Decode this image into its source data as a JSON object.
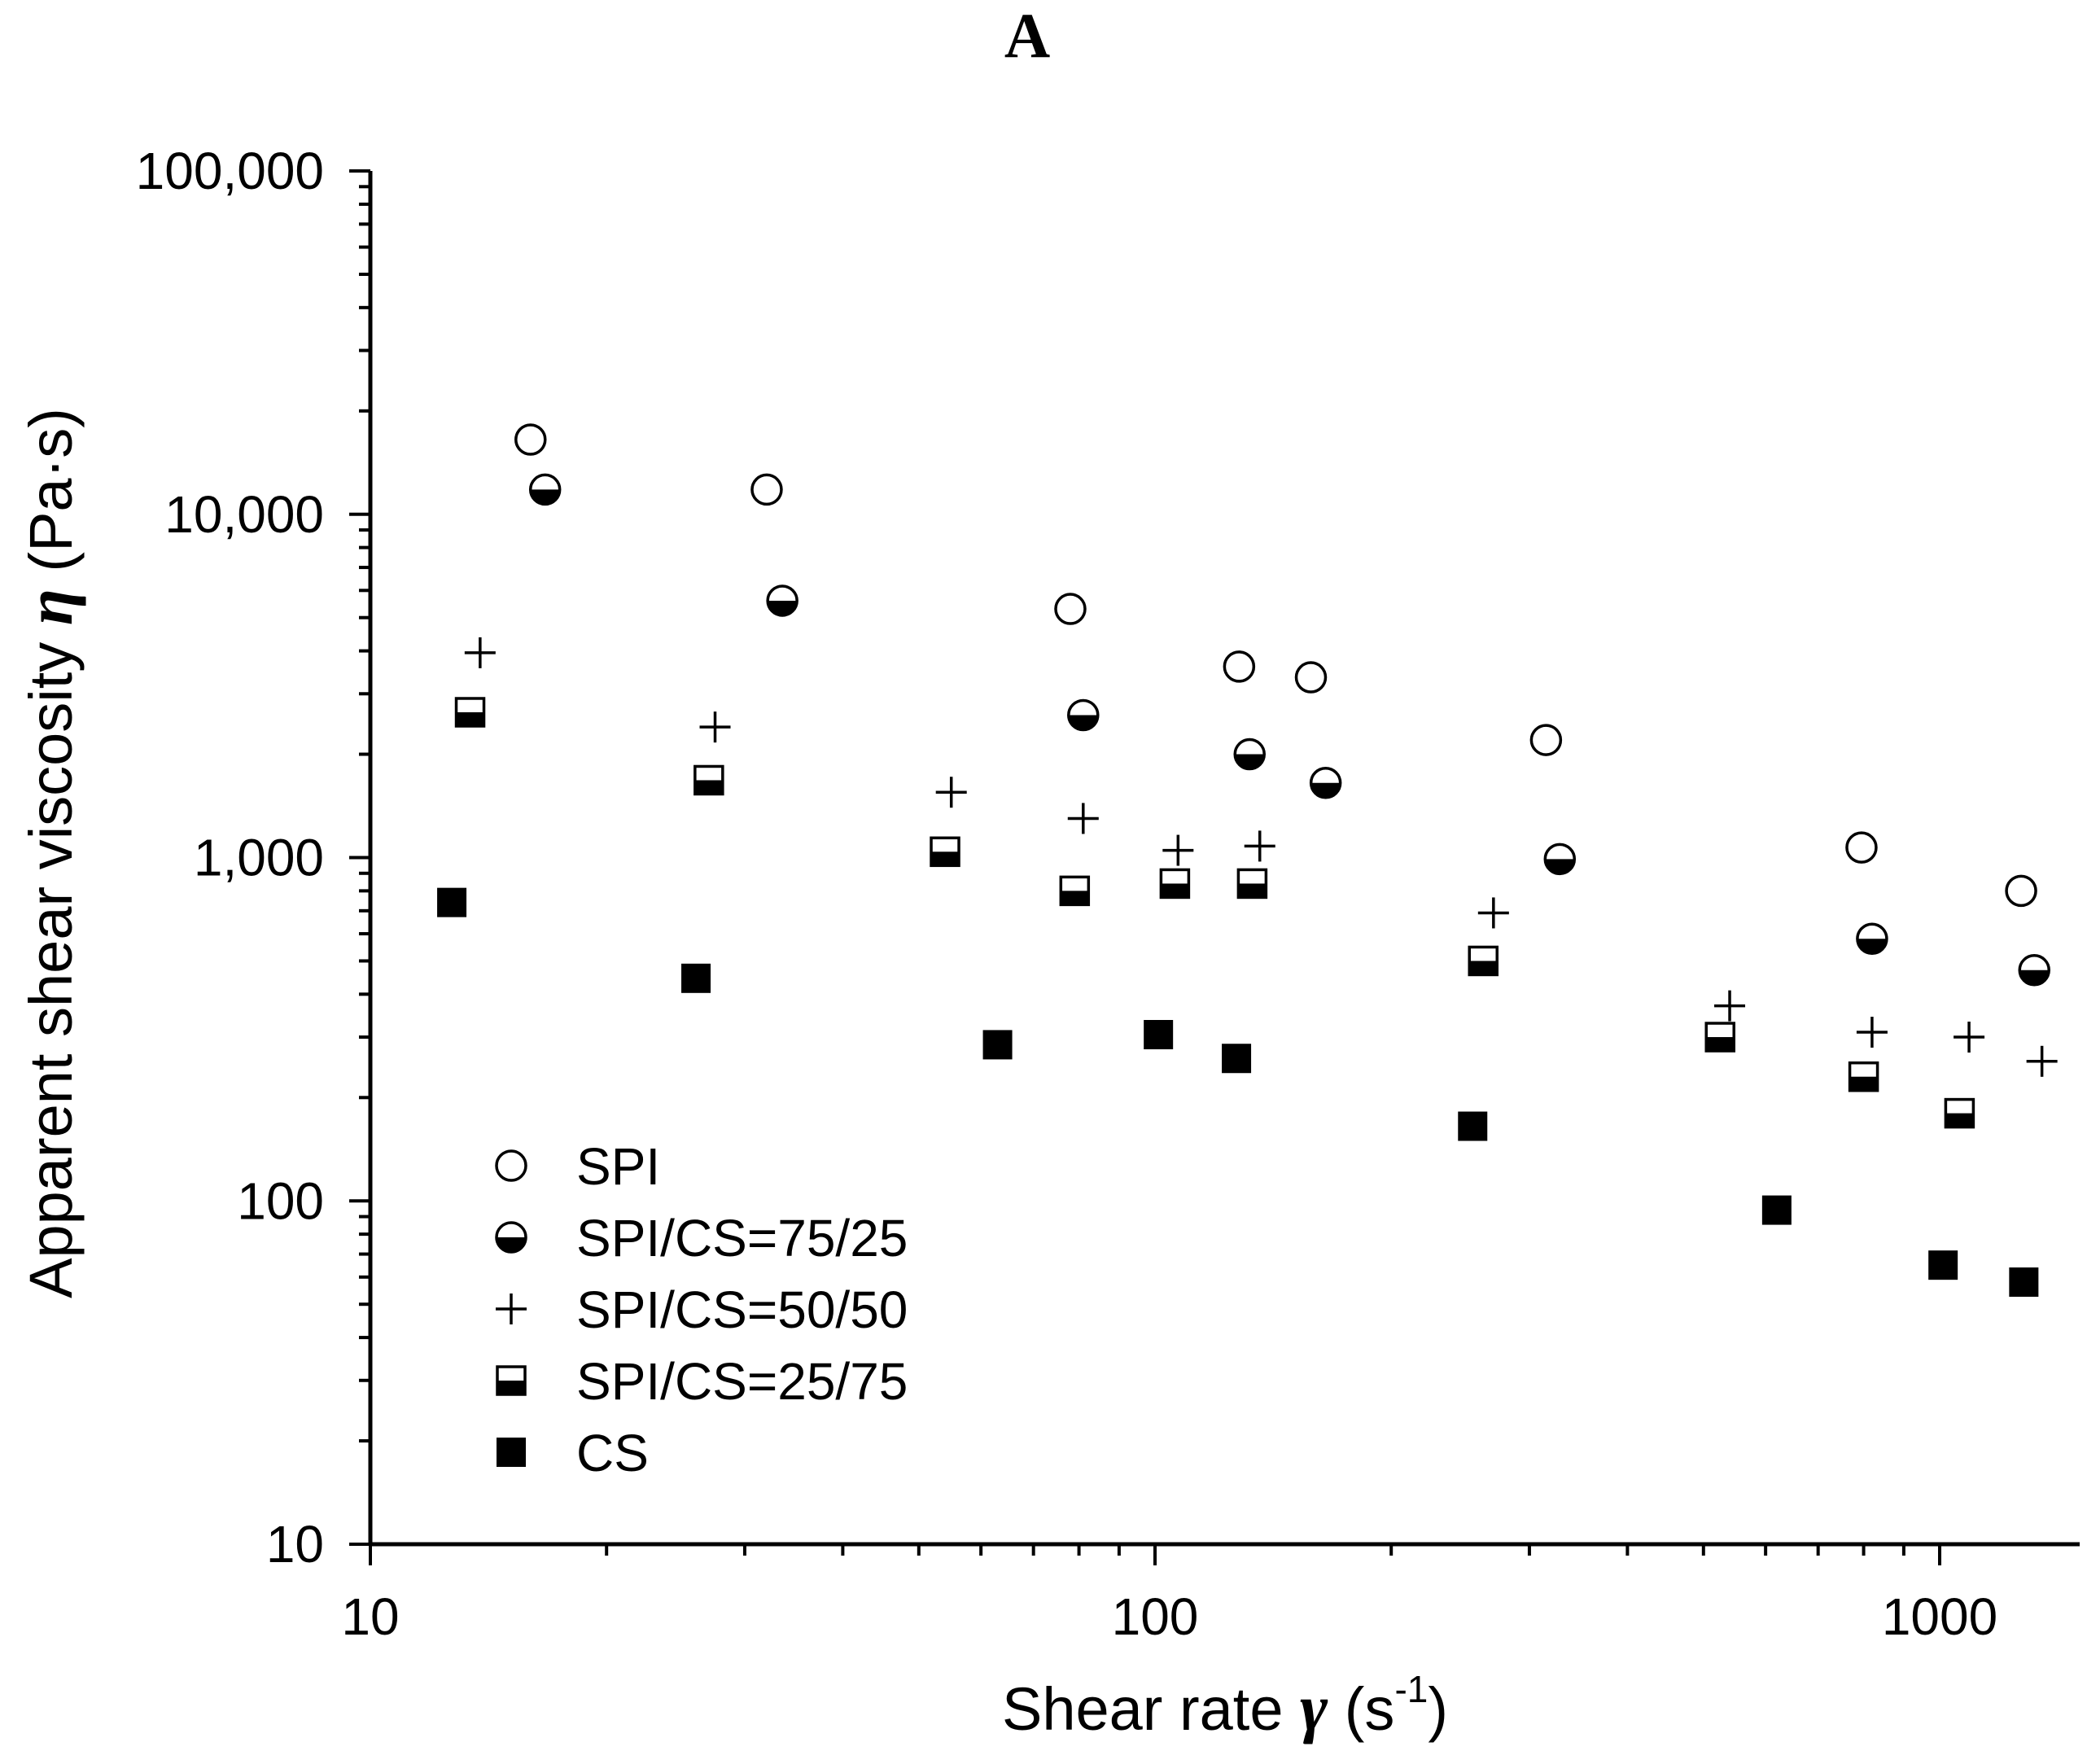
{
  "chart_data": {
    "type": "scatter",
    "panel_label": "A",
    "title": "",
    "xlabel": {
      "text": "Shear rate",
      "symbol": "γ",
      "unit_open": "(s",
      "unit_exp": "-1",
      "unit_close": ")"
    },
    "ylabel": {
      "text": "Apparent shear viscosity",
      "symbol": "η",
      "unit": "(Pa·s)"
    },
    "xscale": "log",
    "yscale": "log",
    "xlim": [
      10,
      1400
    ],
    "ylim": [
      10,
      100000
    ],
    "x_ticks": [
      {
        "value": 10,
        "label": "10"
      },
      {
        "value": 100,
        "label": "100"
      },
      {
        "value": 1000,
        "label": "1000"
      }
    ],
    "y_ticks": [
      {
        "value": 10,
        "label": "10"
      },
      {
        "value": 100,
        "label": "100"
      },
      {
        "value": 1000,
        "label": "1,000"
      },
      {
        "value": 10000,
        "label": "10,000"
      },
      {
        "value": 100000,
        "label": "100,000"
      }
    ],
    "grid": false,
    "legend_position": "bottom-left",
    "series": [
      {
        "name": "SPI",
        "marker": "open-circle",
        "x": [
          16.0,
          32.0,
          78.0,
          128.0,
          158.0,
          315.0,
          795.0,
          1270.0
        ],
        "y": [
          16500,
          11800,
          5300,
          3600,
          3350,
          2200,
          1070,
          800
        ]
      },
      {
        "name": "SPI/CS=75/25",
        "marker": "half-filled-circle",
        "x": [
          16.7,
          33.5,
          81.0,
          132.0,
          165.0,
          328.0,
          820.0,
          1320.0
        ],
        "y": [
          11800,
          5600,
          2600,
          2000,
          1650,
          990,
          580,
          470
        ]
      },
      {
        "name": "SPI/CS=50/50",
        "marker": "plus",
        "x": [
          13.8,
          27.5,
          55.0,
          81.0,
          107.0,
          136.0,
          270.0,
          540.0,
          820.0,
          1090.0,
          1350.0
        ],
        "y": [
          3950,
          2400,
          1550,
          1300,
          1050,
          1080,
          690,
          370,
          310,
          300,
          255
        ]
      },
      {
        "name": "SPI/CS=25/75",
        "marker": "half-filled-square",
        "x": [
          13.4,
          27.0,
          54.0,
          79.0,
          106.0,
          133.0,
          262.0,
          525.0,
          800.0,
          1060.0
        ],
        "y": [
          2650,
          1680,
          1040,
          800,
          840,
          840,
          500,
          300,
          230,
          180
        ]
      },
      {
        "name": "CS",
        "marker": "filled-square",
        "x": [
          12.7,
          26.0,
          63.0,
          101.0,
          127.0,
          254.0,
          620.0,
          1010.0,
          1280.0
        ],
        "y": [
          740,
          445,
          285,
          305,
          260,
          165,
          94,
          65,
          58
        ]
      }
    ]
  }
}
